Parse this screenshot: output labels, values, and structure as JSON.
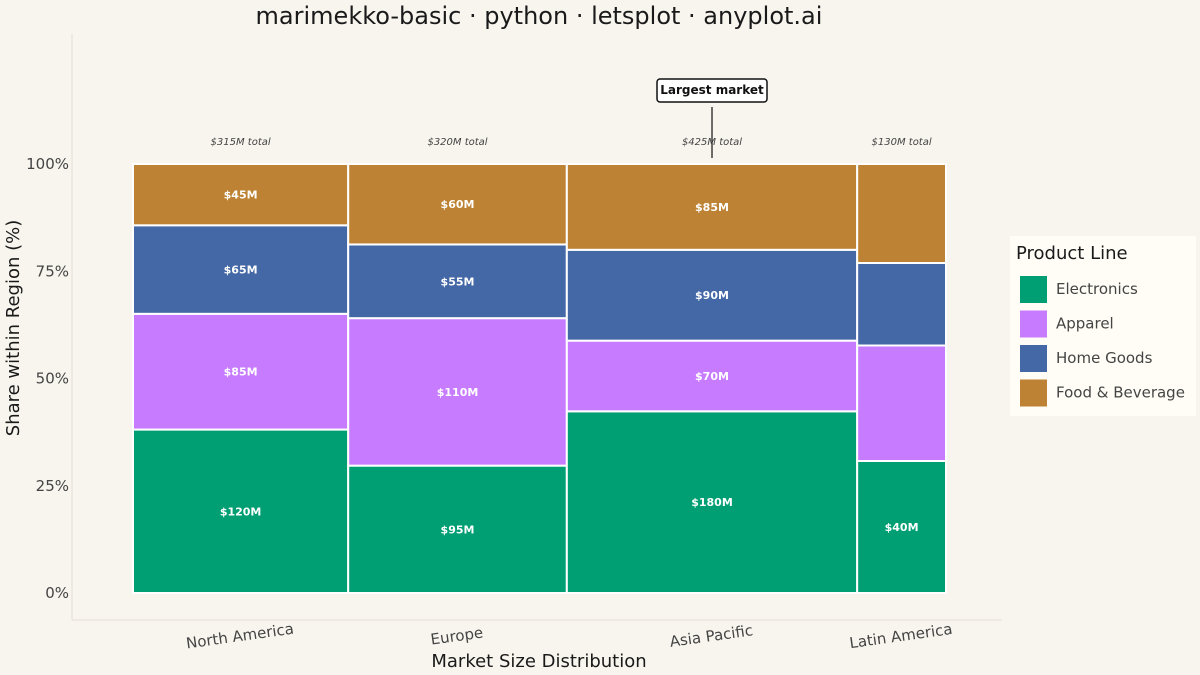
{
  "chart_data": {
    "type": "marimekko",
    "title": "marimekko-basic · python · letsplot · anyplot.ai",
    "xlabel": "Market Size Distribution",
    "ylabel": "Share within Region (%)",
    "ylim": [
      0,
      100
    ],
    "y_ticks": [
      "0%",
      "25%",
      "50%",
      "75%",
      "100%"
    ],
    "categories": [
      "North America",
      "Europe",
      "Asia Pacific",
      "Latin America"
    ],
    "totals": [
      315,
      320,
      425,
      130
    ],
    "total_labels": [
      "$315M total",
      "$320M total",
      "$425M total",
      "$130M total"
    ],
    "series": [
      {
        "name": "Electronics",
        "color": "#009E73",
        "values": [
          120,
          95,
          180,
          40
        ],
        "labels": [
          "$120M",
          "$95M",
          "$180M",
          "$40M"
        ]
      },
      {
        "name": "Apparel",
        "color": "#C77CFF",
        "values": [
          85,
          110,
          70,
          35
        ],
        "labels": [
          "$85M",
          "$110M",
          "$70M",
          ""
        ]
      },
      {
        "name": "Home Goods",
        "color": "#4467A5",
        "values": [
          65,
          55,
          90,
          25
        ],
        "labels": [
          "$65M",
          "$55M",
          "$90M",
          ""
        ]
      },
      {
        "name": "Food & Beverage",
        "color": "#BD8233",
        "values": [
          45,
          60,
          85,
          30
        ],
        "labels": [
          "$45M",
          "$60M",
          "$85M",
          ""
        ]
      }
    ],
    "legend": {
      "title": "Product Line",
      "position": "right"
    },
    "annotation": {
      "text": "Largest market",
      "category": "Asia Pacific"
    },
    "grid": false
  }
}
